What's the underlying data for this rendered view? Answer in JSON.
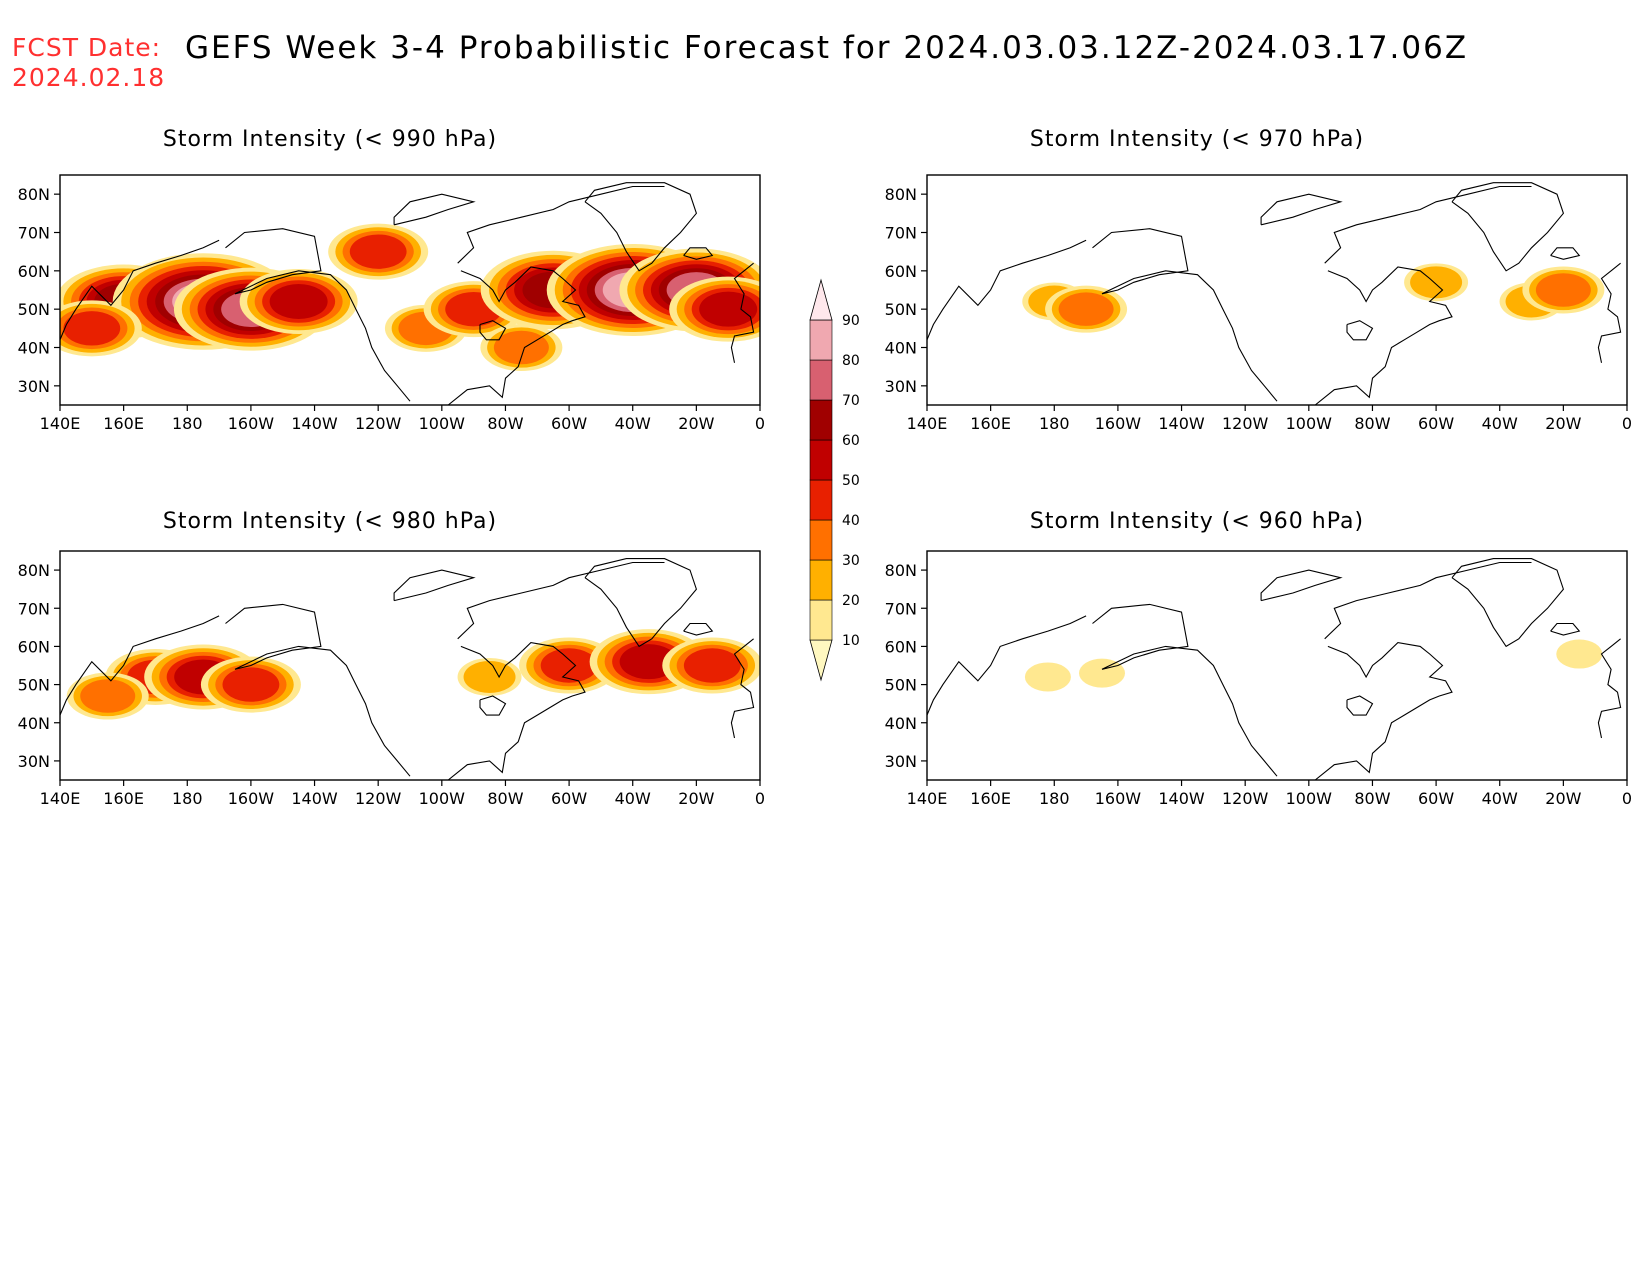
{
  "header": {
    "fcst_label": "FCST Date:",
    "fcst_date": "2024.02.18",
    "title": "GEFS Week 3-4 Probabilistic Forecast for 2024.03.03.12Z-2024.03.17.06Z"
  },
  "axes": {
    "lon_labels": [
      "140E",
      "160E",
      "180",
      "160W",
      "140W",
      "120W",
      "100W",
      "80W",
      "60W",
      "40W",
      "20W",
      "0"
    ],
    "lat_labels": [
      "80N",
      "70N",
      "60N",
      "50N",
      "40N",
      "30N"
    ]
  },
  "panels": [
    {
      "title": "Storm Intensity (< 990 hPa)"
    },
    {
      "title": "Storm Intensity (< 970 hPa)"
    },
    {
      "title": "Storm Intensity (< 980 hPa)"
    },
    {
      "title": "Storm Intensity (< 960 hPa)"
    }
  ],
  "colorbar": {
    "levels": [
      "10",
      "20",
      "30",
      "40",
      "50",
      "60",
      "70",
      "80",
      "90"
    ],
    "colors": [
      "#fff8c0",
      "#ffe890",
      "#ffb000",
      "#ff7000",
      "#e82000",
      "#c00000",
      "#a00000",
      "#d86070",
      "#f0a8b0",
      "#ffe8ec"
    ]
  },
  "chart_data": {
    "type": "heatmap",
    "variable": "probability (%)",
    "lon_range": [
      140,
      360
    ],
    "lat_range": [
      25,
      85
    ],
    "fields": [
      {
        "panel": "990",
        "blobs": [
          {
            "lon": 160,
            "lat": 52,
            "value": 60
          },
          {
            "lon": 185,
            "lat": 52,
            "value": 85
          },
          {
            "lon": 200,
            "lat": 50,
            "value": 70
          },
          {
            "lon": 215,
            "lat": 52,
            "value": 50
          },
          {
            "lon": 150,
            "lat": 45,
            "value": 40
          },
          {
            "lon": 255,
            "lat": 45,
            "value": 30
          },
          {
            "lon": 270,
            "lat": 50,
            "value": 40
          },
          {
            "lon": 295,
            "lat": 55,
            "value": 65
          },
          {
            "lon": 320,
            "lat": 55,
            "value": 80
          },
          {
            "lon": 340,
            "lat": 55,
            "value": 70
          },
          {
            "lon": 285,
            "lat": 40,
            "value": 30
          },
          {
            "lon": 350,
            "lat": 50,
            "value": 50
          },
          {
            "lon": 240,
            "lat": 65,
            "value": 40
          }
        ]
      },
      {
        "panel": "970",
        "blobs": [
          {
            "lon": 180,
            "lat": 52,
            "value": 20
          },
          {
            "lon": 190,
            "lat": 50,
            "value": 30
          },
          {
            "lon": 330,
            "lat": 52,
            "value": 20
          },
          {
            "lon": 340,
            "lat": 55,
            "value": 30
          },
          {
            "lon": 300,
            "lat": 57,
            "value": 20
          }
        ]
      },
      {
        "panel": "980",
        "blobs": [
          {
            "lon": 170,
            "lat": 52,
            "value": 40
          },
          {
            "lon": 185,
            "lat": 52,
            "value": 50
          },
          {
            "lon": 200,
            "lat": 50,
            "value": 40
          },
          {
            "lon": 155,
            "lat": 47,
            "value": 30
          },
          {
            "lon": 275,
            "lat": 52,
            "value": 20
          },
          {
            "lon": 300,
            "lat": 55,
            "value": 40
          },
          {
            "lon": 325,
            "lat": 56,
            "value": 50
          },
          {
            "lon": 345,
            "lat": 55,
            "value": 40
          }
        ]
      },
      {
        "panel": "960",
        "blobs": [
          {
            "lon": 178,
            "lat": 52,
            "value": 10
          },
          {
            "lon": 195,
            "lat": 53,
            "value": 10
          },
          {
            "lon": 345,
            "lat": 58,
            "value": 10
          }
        ]
      }
    ]
  }
}
